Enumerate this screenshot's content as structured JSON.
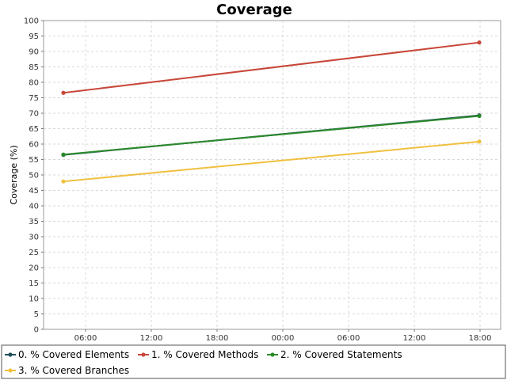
{
  "chart_data": {
    "type": "line",
    "title": "Coverage",
    "xlabel": "",
    "ylabel": "Coverage (%)",
    "ylim": [
      0,
      100
    ],
    "ytick_step": 5,
    "x_tick_labels": [
      "06:00",
      "12:00",
      "18:00",
      "00:00",
      "06:00",
      "12:00",
      "18:00"
    ],
    "x_points": [
      "04:00",
      "18:00 (+1 day)"
    ],
    "grid": true,
    "legend_position": "bottom",
    "series": [
      {
        "name": "0. % Covered Elements",
        "color": "#1f4e5a",
        "values": [
          56.5,
          69.3
        ]
      },
      {
        "name": "1. % Covered Methods",
        "color": "#c8473a",
        "values": [
          76.6,
          92.9
        ]
      },
      {
        "name": "2. % Covered Statements",
        "color": "#2a8a2a",
        "values": [
          56.6,
          69.1
        ]
      },
      {
        "name": "3. % Covered Branches",
        "color": "#f0c040",
        "values": [
          47.9,
          60.8
        ]
      }
    ]
  }
}
